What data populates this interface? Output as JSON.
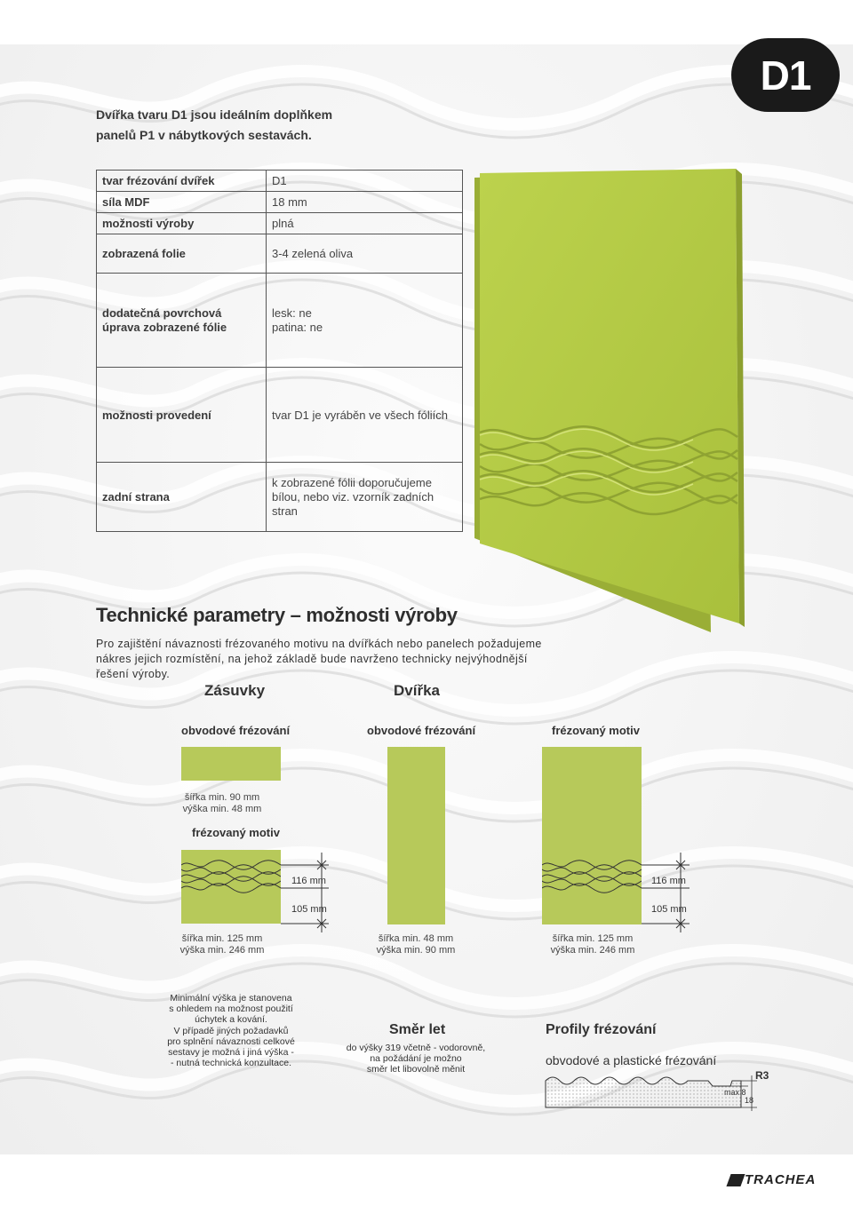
{
  "badge": "D1",
  "intro": {
    "line1": "Dvířka tvaru D1 jsou ideálním doplňkem",
    "line2": "panelů P1 v nábytkových sestavách."
  },
  "specs": [
    {
      "label": "tvar frézování dvířek",
      "value": "D1"
    },
    {
      "label": "síla MDF",
      "value": "18 mm"
    },
    {
      "label": "možnosti výroby",
      "value": "plná"
    },
    {
      "label": "zobrazená folie",
      "value": "3-4 zelená oliva"
    },
    {
      "label": "dodatečná povrchová úprava zobrazené fólie",
      "value": "lesk: ne\npatina: ne"
    },
    {
      "label": "možnosti provedení",
      "value": "tvar D1 je vyráběn ve všech fóliích"
    },
    {
      "label": "zadní strana",
      "value": "k zobrazené fólii doporučujeme bílou, nebo viz. vzorník zadních stran"
    }
  ],
  "section": {
    "title": "Technické parametry – možnosti výroby",
    "desc": "Pro zajištění návaznosti frézovaného motivu na dvířkách nebo panelech požadujeme nákres jejich rozmístění, na jehož základě bude navrženo technicky nejvýhodnější řešení výroby."
  },
  "groups": {
    "zasuvky": "Zásuvky",
    "dvirka": "Dvířka"
  },
  "labels": {
    "obvodove1": "obvodové frézování",
    "obvodove2": "obvodové frézování",
    "frezovany_motiv_right": "frézovaný motiv",
    "frezovany_motiv_left": "frézovaný motiv"
  },
  "sizes": {
    "drawer_plain_w": "šířka min. 90 mm",
    "drawer_plain_h": "výška min. 48 mm",
    "drawer_motif_w": "šířka min. 125 mm",
    "drawer_motif_h": "výška min. 246 mm",
    "door_plain_w": "šířka min. 48 mm",
    "door_plain_h": "výška min. 90 mm",
    "door_motif_w": "šířka min. 125 mm",
    "door_motif_h": "výška min. 246 mm"
  },
  "dims": {
    "a1": "116 mm",
    "b1": "105 mm",
    "a2": "116 mm",
    "b2": "105 mm"
  },
  "notes": {
    "min_height": [
      "Minimální výška je stanovena",
      "s ohledem na možnost použití",
      "úchytek a kování.",
      "V případě jiných požadavků",
      "pro splnění návaznosti celkové",
      "sestavy je možná i jiná výška -",
      "- nutná technická konzultace."
    ],
    "smer_title": "Směr let",
    "smer_text": [
      "do výšky 319 včetně - vodorovně,",
      "na požádání je možno",
      "směr let libovolně měnit"
    ],
    "profily_title": "Profily frézování",
    "profily_sub": "obvodové a plastické frézování",
    "r3": "R3",
    "max8": "max 8",
    "t18": "18"
  },
  "logo": "TRACHEA",
  "colors": {
    "panel": "#b7c95a",
    "door": "#b5cc45",
    "badge": "#1a1a1a"
  }
}
